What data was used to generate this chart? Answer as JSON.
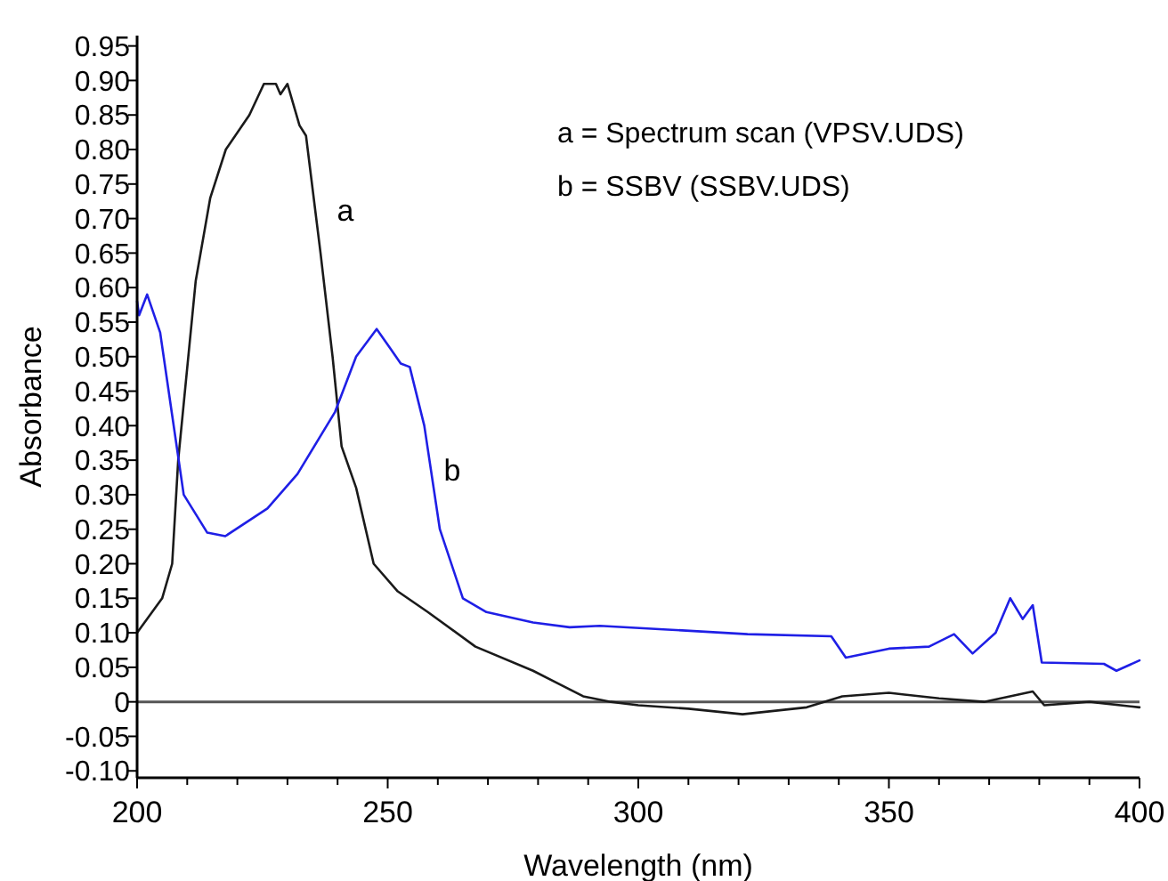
{
  "chart_data": {
    "type": "line",
    "xlabel": "Wavelength (nm)",
    "ylabel": "Absorbance",
    "xlim": [
      200,
      400
    ],
    "ylim": [
      -0.11,
      0.965
    ],
    "xticks": [
      200,
      {
        "value": 210,
        "label": null
      },
      {
        "value": 220,
        "label": null
      },
      {
        "value": 230,
        "label": null
      },
      {
        "value": 240,
        "label": null
      },
      250,
      {
        "value": 260,
        "label": null
      },
      {
        "value": 270,
        "label": null
      },
      {
        "value": 280,
        "label": null
      },
      {
        "value": 290,
        "label": null
      },
      300,
      {
        "value": 310,
        "label": null
      },
      {
        "value": 320,
        "label": null
      },
      {
        "value": 330,
        "label": null
      },
      {
        "value": 340,
        "label": null
      },
      350,
      {
        "value": 360,
        "label": null
      },
      {
        "value": 370,
        "label": null
      },
      {
        "value": 380,
        "label": null
      },
      {
        "value": 390,
        "label": null
      },
      400
    ],
    "yticks": [
      {
        "value": -0.1,
        "label": "-0.10"
      },
      {
        "value": -0.05,
        "label": "-0.05"
      },
      0,
      {
        "value": 0.05,
        "label": "0.05"
      },
      {
        "value": 0.1,
        "label": "0.10"
      },
      {
        "value": 0.15,
        "label": "0.15"
      },
      {
        "value": 0.2,
        "label": "0.20"
      },
      {
        "value": 0.25,
        "label": "0.25"
      },
      {
        "value": 0.3,
        "label": "0.30"
      },
      {
        "value": 0.35,
        "label": "0.35"
      },
      {
        "value": 0.4,
        "label": "0.40"
      },
      {
        "value": 0.45,
        "label": "0.45"
      },
      {
        "value": 0.5,
        "label": "0.50"
      },
      {
        "value": 0.55,
        "label": "0.55"
      },
      {
        "value": 0.6,
        "label": "0.60"
      },
      {
        "value": 0.65,
        "label": "0.65"
      },
      {
        "value": 0.7,
        "label": "0.70"
      },
      {
        "value": 0.75,
        "label": "0.75"
      },
      {
        "value": 0.8,
        "label": "0.80"
      },
      {
        "value": 0.85,
        "label": "0.85"
      },
      {
        "value": 0.9,
        "label": "0.90"
      },
      {
        "value": 0.95,
        "label": "0.95"
      }
    ],
    "grid": false,
    "marker": "none",
    "line_style": "solid",
    "ref_lines": [
      {
        "axis": "y",
        "value": 0,
        "label": null,
        "color": "#555555"
      }
    ],
    "annotations": [
      "a = Spectrum scan (VPSV.UDS)",
      "b = SSBV (SSBV.UDS)",
      "a",
      "b"
    ],
    "series": [
      {
        "color": "#1a1a1a",
        "x": [
          200,
          203,
          205,
          207,
          208.2,
          211.7,
          214.6,
          217.7,
          222.4,
          225.3,
          227.7,
          228.6,
          230,
          232.4,
          233.7,
          236.6,
          239,
          240.8,
          243.7,
          247.2,
          252,
          258,
          267.5,
          279,
          289,
          294.5,
          300,
          310,
          320.8,
          333.6,
          340.7,
          350,
          360,
          369,
          378.7,
          381,
          390,
          400
        ],
        "values": [
          0.1,
          0.13,
          0.15,
          0.2,
          0.35,
          0.61,
          0.73,
          0.8,
          0.85,
          0.895,
          0.895,
          0.88,
          0.895,
          0.835,
          0.82,
          0.65,
          0.5,
          0.37,
          0.31,
          0.2,
          0.16,
          0.13,
          0.08,
          0.045,
          0.008,
          0.0,
          -0.005,
          -0.01,
          -0.018,
          -0.008,
          0.008,
          0.013,
          0.005,
          0.0,
          0.015,
          -0.005,
          0.0,
          -0.008
        ]
      },
      {
        "color": "#1f1fe6",
        "x": [
          200,
          200.4,
          202,
          204.6,
          207,
          209.3,
          214,
          217.6,
          226,
          232,
          239.5,
          243.7,
          247.8,
          250.7,
          252.6,
          254.4,
          257.3,
          260.4,
          265,
          269.7,
          279,
          286.3,
          292.3,
          305,
          321.8,
          338.5,
          341.4,
          350,
          358,
          363,
          366.7,
          371.3,
          374.2,
          376.7,
          378.7,
          380.5,
          392.9,
          395.4,
          400
        ],
        "values": [
          0.58,
          0.56,
          0.59,
          0.535,
          0.415,
          0.3,
          0.245,
          0.24,
          0.28,
          0.33,
          0.42,
          0.5,
          0.54,
          0.51,
          0.49,
          0.485,
          0.4,
          0.25,
          0.15,
          0.13,
          0.115,
          0.108,
          0.11,
          0.105,
          0.098,
          0.095,
          0.064,
          0.077,
          0.08,
          0.098,
          0.07,
          0.1,
          0.15,
          0.12,
          0.14,
          0.057,
          0.055,
          0.045,
          0.06
        ]
      }
    ]
  }
}
